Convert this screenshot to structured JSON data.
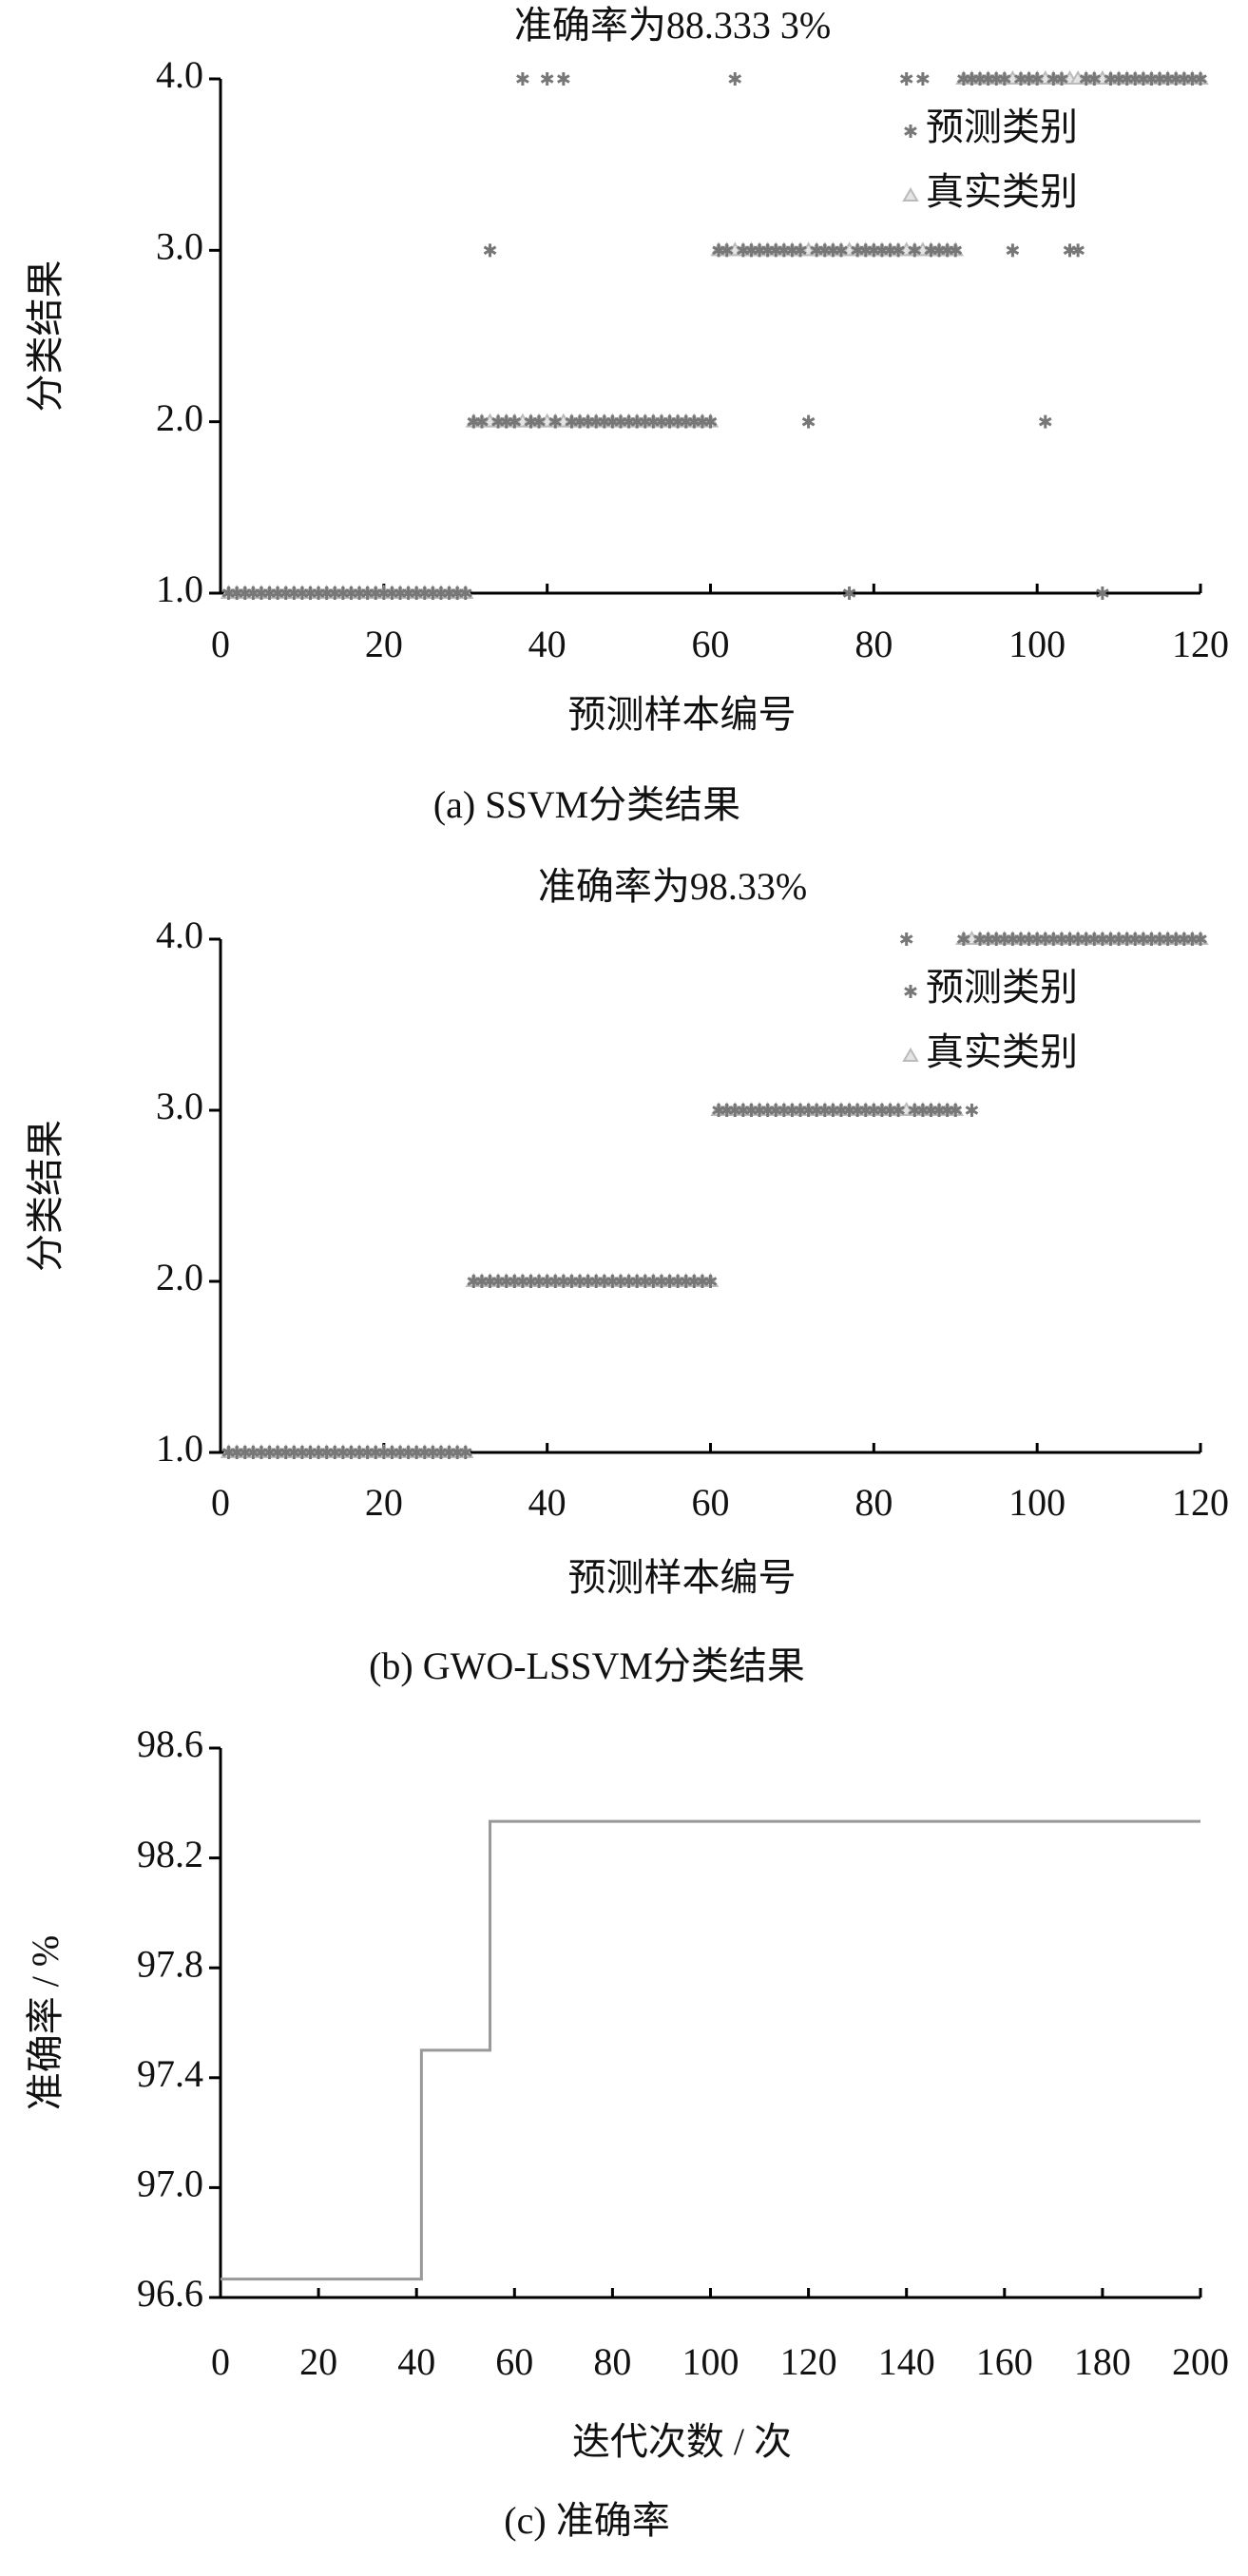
{
  "chart_data": [
    {
      "type": "scatter",
      "title": "准确率为88.333 3%",
      "x_label": "预测样本编号",
      "y_label": "分类结果",
      "caption": "(a)  SSVM分类结果",
      "x": [
        1,
        2,
        3,
        4,
        5,
        6,
        7,
        8,
        9,
        10,
        11,
        12,
        13,
        14,
        15,
        16,
        17,
        18,
        19,
        20,
        21,
        22,
        23,
        24,
        25,
        26,
        27,
        28,
        29,
        30,
        31,
        32,
        33,
        34,
        35,
        36,
        37,
        38,
        39,
        40,
        41,
        42,
        43,
        44,
        45,
        46,
        47,
        48,
        49,
        50,
        51,
        52,
        53,
        54,
        55,
        56,
        57,
        58,
        59,
        60,
        61,
        62,
        63,
        64,
        65,
        66,
        67,
        68,
        69,
        70,
        71,
        72,
        73,
        74,
        75,
        76,
        77,
        78,
        79,
        80,
        81,
        82,
        83,
        84,
        85,
        86,
        87,
        88,
        89,
        90,
        91,
        92,
        93,
        94,
        95,
        96,
        97,
        98,
        99,
        100,
        101,
        102,
        103,
        104,
        105,
        106,
        107,
        108,
        109,
        110,
        111,
        112,
        113,
        114,
        115,
        116,
        117,
        118,
        119,
        120
      ],
      "series": [
        {
          "name": "预测类别",
          "color": "#777777",
          "marker": "asterisk",
          "values": [
            1,
            1,
            1,
            1,
            1,
            1,
            1,
            1,
            1,
            1,
            1,
            1,
            1,
            1,
            1,
            1,
            1,
            1,
            1,
            1,
            1,
            1,
            1,
            1,
            1,
            1,
            1,
            1,
            1,
            1,
            2,
            2,
            3,
            2,
            2,
            2,
            4,
            2,
            2,
            4,
            2,
            4,
            2,
            2,
            2,
            2,
            2,
            2,
            2,
            2,
            2,
            2,
            2,
            2,
            2,
            2,
            2,
            2,
            2,
            2,
            3,
            3,
            4,
            3,
            3,
            3,
            3,
            3,
            3,
            3,
            3,
            2,
            3,
            3,
            3,
            3,
            1,
            3,
            3,
            3,
            3,
            3,
            3,
            4,
            3,
            4,
            3,
            3,
            3,
            3,
            4,
            4,
            4,
            4,
            4,
            4,
            3,
            4,
            4,
            4,
            2,
            4,
            4,
            3,
            3,
            4,
            4,
            1,
            4,
            4,
            4,
            4,
            4,
            4,
            4,
            4,
            4,
            4,
            4,
            4
          ]
        },
        {
          "name": "真实类别",
          "color": "#bbbbbb",
          "marker": "triangle",
          "values": [
            1,
            1,
            1,
            1,
            1,
            1,
            1,
            1,
            1,
            1,
            1,
            1,
            1,
            1,
            1,
            1,
            1,
            1,
            1,
            1,
            1,
            1,
            1,
            1,
            1,
            1,
            1,
            1,
            1,
            1,
            2,
            2,
            2,
            2,
            2,
            2,
            2,
            2,
            2,
            2,
            2,
            2,
            2,
            2,
            2,
            2,
            2,
            2,
            2,
            2,
            2,
            2,
            2,
            2,
            2,
            2,
            2,
            2,
            2,
            2,
            3,
            3,
            3,
            3,
            3,
            3,
            3,
            3,
            3,
            3,
            3,
            3,
            3,
            3,
            3,
            3,
            3,
            3,
            3,
            3,
            3,
            3,
            3,
            3,
            3,
            3,
            3,
            3,
            3,
            3,
            4,
            4,
            4,
            4,
            4,
            4,
            4,
            4,
            4,
            4,
            4,
            4,
            4,
            4,
            4,
            4,
            4,
            4,
            4,
            4,
            4,
            4,
            4,
            4,
            4,
            4,
            4,
            4,
            4,
            4
          ]
        }
      ],
      "xlim": [
        0,
        120
      ],
      "xticks": [
        0,
        20,
        40,
        60,
        80,
        100,
        120
      ],
      "ylim": [
        1,
        4
      ],
      "yticks": [
        {
          "value": 1,
          "label": "1.0"
        },
        {
          "value": 2,
          "label": "2.0"
        },
        {
          "value": 3,
          "label": "3.0"
        },
        {
          "value": 4,
          "label": "4.0"
        }
      ],
      "legend": "upper right",
      "grid": false
    },
    {
      "type": "scatter",
      "title": "准确率为98.33%",
      "x_label": "预测样本编号",
      "y_label": "分类结果",
      "caption": "(b)  GWO-LSSVM分类结果",
      "x": [
        1,
        2,
        3,
        4,
        5,
        6,
        7,
        8,
        9,
        10,
        11,
        12,
        13,
        14,
        15,
        16,
        17,
        18,
        19,
        20,
        21,
        22,
        23,
        24,
        25,
        26,
        27,
        28,
        29,
        30,
        31,
        32,
        33,
        34,
        35,
        36,
        37,
        38,
        39,
        40,
        41,
        42,
        43,
        44,
        45,
        46,
        47,
        48,
        49,
        50,
        51,
        52,
        53,
        54,
        55,
        56,
        57,
        58,
        59,
        60,
        61,
        62,
        63,
        64,
        65,
        66,
        67,
        68,
        69,
        70,
        71,
        72,
        73,
        74,
        75,
        76,
        77,
        78,
        79,
        80,
        81,
        82,
        83,
        84,
        85,
        86,
        87,
        88,
        89,
        90,
        91,
        92,
        93,
        94,
        95,
        96,
        97,
        98,
        99,
        100,
        101,
        102,
        103,
        104,
        105,
        106,
        107,
        108,
        109,
        110,
        111,
        112,
        113,
        114,
        115,
        116,
        117,
        118,
        119,
        120
      ],
      "series": [
        {
          "name": "预测类别",
          "color": "#777777",
          "marker": "asterisk",
          "values": [
            1,
            1,
            1,
            1,
            1,
            1,
            1,
            1,
            1,
            1,
            1,
            1,
            1,
            1,
            1,
            1,
            1,
            1,
            1,
            1,
            1,
            1,
            1,
            1,
            1,
            1,
            1,
            1,
            1,
            1,
            2,
            2,
            2,
            2,
            2,
            2,
            2,
            2,
            2,
            2,
            2,
            2,
            2,
            2,
            2,
            2,
            2,
            2,
            2,
            2,
            2,
            2,
            2,
            2,
            2,
            2,
            2,
            2,
            2,
            2,
            3,
            3,
            3,
            3,
            3,
            3,
            3,
            3,
            3,
            3,
            3,
            3,
            3,
            3,
            3,
            3,
            3,
            3,
            3,
            3,
            3,
            3,
            3,
            4,
            3,
            3,
            3,
            3,
            3,
            3,
            4,
            3,
            4,
            4,
            4,
            4,
            4,
            4,
            4,
            4,
            4,
            4,
            4,
            4,
            4,
            4,
            4,
            4,
            4,
            4,
            4,
            4,
            4,
            4,
            4,
            4,
            4,
            4,
            4,
            4
          ]
        },
        {
          "name": "真实类别",
          "color": "#bbbbbb",
          "marker": "triangle",
          "values": [
            1,
            1,
            1,
            1,
            1,
            1,
            1,
            1,
            1,
            1,
            1,
            1,
            1,
            1,
            1,
            1,
            1,
            1,
            1,
            1,
            1,
            1,
            1,
            1,
            1,
            1,
            1,
            1,
            1,
            1,
            2,
            2,
            2,
            2,
            2,
            2,
            2,
            2,
            2,
            2,
            2,
            2,
            2,
            2,
            2,
            2,
            2,
            2,
            2,
            2,
            2,
            2,
            2,
            2,
            2,
            2,
            2,
            2,
            2,
            2,
            3,
            3,
            3,
            3,
            3,
            3,
            3,
            3,
            3,
            3,
            3,
            3,
            3,
            3,
            3,
            3,
            3,
            3,
            3,
            3,
            3,
            3,
            3,
            3,
            3,
            3,
            3,
            3,
            3,
            3,
            4,
            4,
            4,
            4,
            4,
            4,
            4,
            4,
            4,
            4,
            4,
            4,
            4,
            4,
            4,
            4,
            4,
            4,
            4,
            4,
            4,
            4,
            4,
            4,
            4,
            4,
            4,
            4,
            4,
            4
          ]
        }
      ],
      "xlim": [
        0,
        120
      ],
      "xticks": [
        0,
        20,
        40,
        60,
        80,
        100,
        120
      ],
      "ylim": [
        1,
        4
      ],
      "yticks": [
        {
          "value": 1,
          "label": "1.0"
        },
        {
          "value": 2,
          "label": "2.0"
        },
        {
          "value": 3,
          "label": "3.0"
        },
        {
          "value": 4,
          "label": "4.0"
        }
      ],
      "legend": "upper right",
      "grid": false
    },
    {
      "type": "line",
      "x_label": "迭代次数 / 次",
      "y_label": "准确率 / %",
      "caption": "(c)  准确率",
      "x": [
        0,
        41,
        41,
        55,
        55,
        200
      ],
      "values": [
        96.667,
        96.667,
        97.5,
        97.5,
        98.333,
        98.333
      ],
      "color": "#999999",
      "xlim": [
        0,
        200
      ],
      "xticks": [
        0,
        20,
        40,
        60,
        80,
        100,
        120,
        140,
        160,
        180,
        200
      ],
      "ylim": [
        96.6,
        98.6
      ],
      "yticks": [
        96.6,
        {
          "value": 97,
          "label": "97.0"
        },
        97.4,
        97.8,
        98.2,
        98.6
      ],
      "grid": false
    }
  ]
}
